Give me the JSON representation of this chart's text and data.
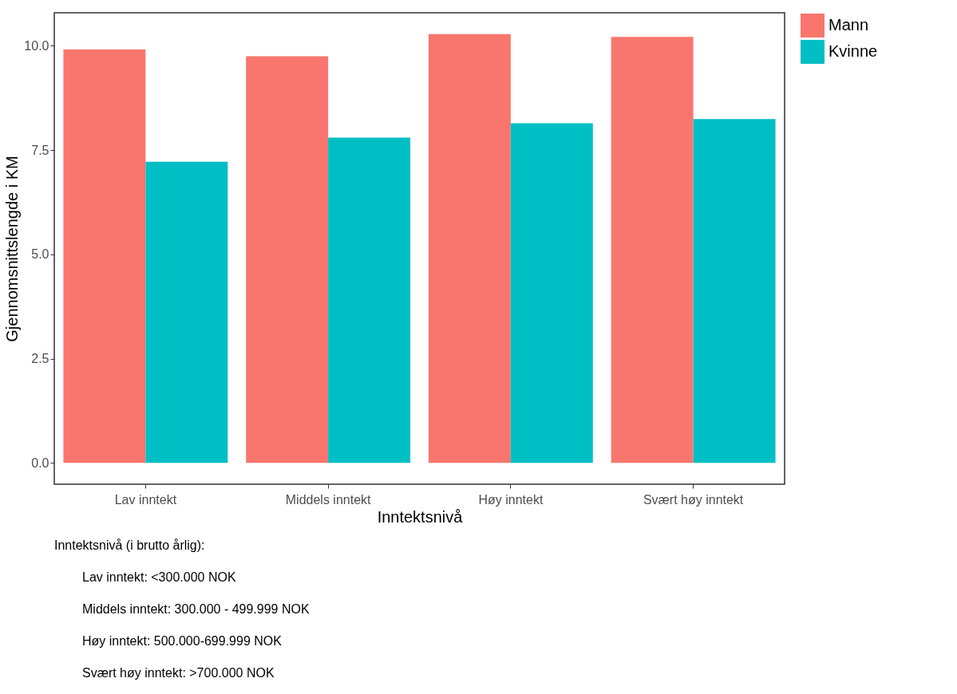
{
  "chart_data": {
    "type": "bar",
    "xlabel": "Inntektsnivå",
    "ylabel": "Gjennomsnittslengde i KM",
    "categories": [
      "Lav inntekt",
      "Middels inntekt",
      "Høy inntekt",
      "Svært høy inntekt"
    ],
    "series": [
      {
        "name": "Mann",
        "color": "#f8766d",
        "values": [
          9.91,
          9.75,
          10.28,
          10.21
        ]
      },
      {
        "name": "Kvinne",
        "color": "#00bfc4",
        "values": [
          7.22,
          7.8,
          8.14,
          8.24
        ]
      }
    ],
    "ylim": [
      -0.51,
      10.79
    ],
    "yticks": [
      {
        "value": 0,
        "label": "0.0"
      },
      {
        "value": 2.5,
        "label": "2.5"
      },
      {
        "value": 5,
        "label": "5.0"
      },
      {
        "value": 7.5,
        "label": "7.5"
      },
      {
        "value": 10,
        "label": "10.0"
      }
    ],
    "grid": false,
    "legend": "right",
    "annotations": [
      "Inntektsnivå (i brutto årlig):",
      "Lav inntekt: <300.000 NOK",
      "Middels inntekt: 300.000 - 499.999 NOK",
      "Høy inntekt: 500.000-699.999 NOK",
      "Svært høy inntekt: >700.000 NOK"
    ]
  }
}
